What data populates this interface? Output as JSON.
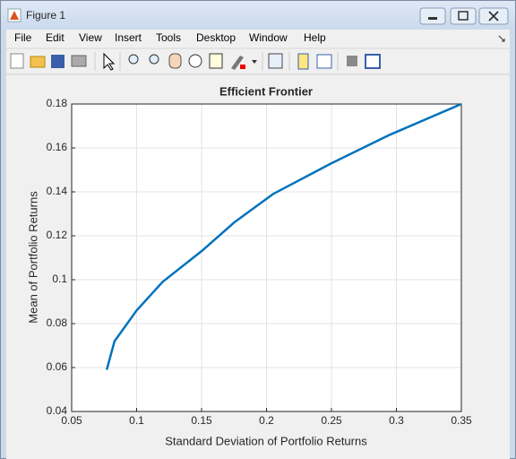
{
  "window": {
    "title": "Figure 1",
    "menu": [
      "File",
      "Edit",
      "View",
      "Insert",
      "Tools",
      "Desktop",
      "Window",
      "Help"
    ]
  },
  "chart_data": {
    "type": "line",
    "title": "Efficient Frontier",
    "x_label": "Standard Deviation of Portfolio Returns",
    "y_label": "Mean of Portfolio Returns",
    "x": [
      0.077,
      0.083,
      0.1,
      0.12,
      0.15,
      0.175,
      0.205,
      0.25,
      0.295,
      0.35
    ],
    "values": [
      0.059,
      0.072,
      0.086,
      0.099,
      0.113,
      0.126,
      0.139,
      0.153,
      0.166,
      0.18
    ],
    "color": "#0072bd",
    "xlim": [
      0.05,
      0.35
    ],
    "xticks": [
      0.05,
      0.1,
      0.15,
      0.2,
      0.25,
      0.3,
      0.35
    ],
    "ylim": [
      0.04,
      0.18
    ],
    "yticks": [
      0.04,
      0.06,
      0.08,
      0.1,
      0.12,
      0.14,
      0.16,
      0.18
    ],
    "grid": true
  }
}
